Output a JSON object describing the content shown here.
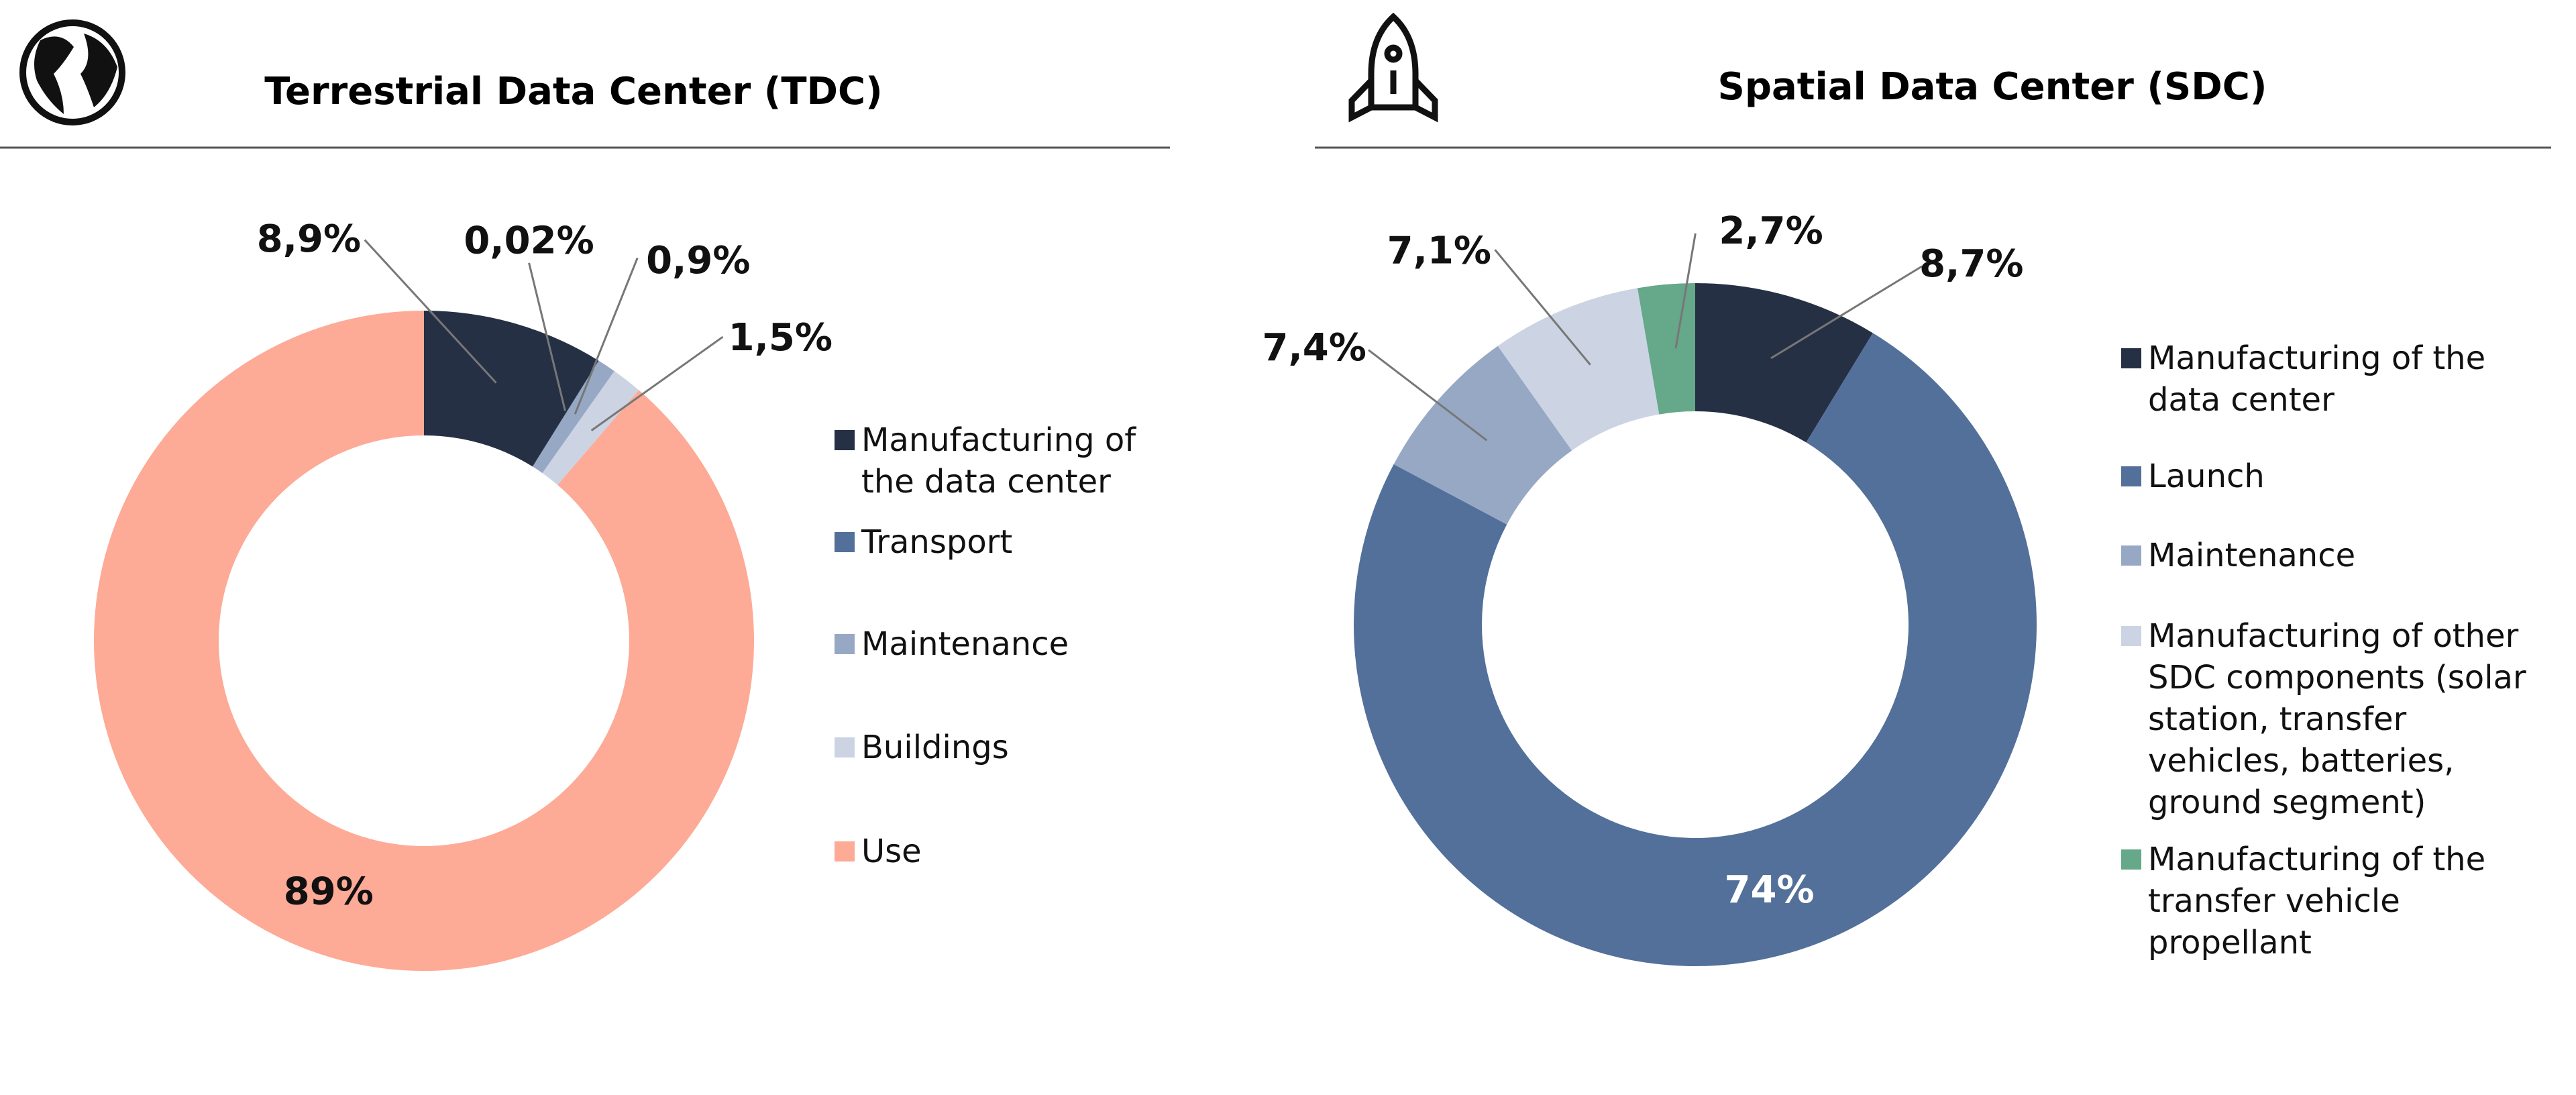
{
  "chart_data": [
    {
      "type": "pie",
      "title": "Terrestrial Data Center (TDC)",
      "categories": [
        "Manufacturing of the data center",
        "Transport",
        "Maintenance",
        "Buildings",
        "Use"
      ],
      "values": [
        8.9,
        0.02,
        0.9,
        1.5,
        89
      ],
      "value_labels": [
        "8,9%",
        "0,02%",
        "0,9%",
        "1,5%",
        "89%"
      ],
      "colors": [
        "#253044",
        "#52709a",
        "#97a8c5",
        "#ccd4e3",
        "#fdaa96"
      ]
    },
    {
      "type": "pie",
      "title": "Spatial Data Center (SDC)",
      "categories": [
        "Manufacturing of the data center",
        "Launch",
        "Maintenance",
        "Manufacturing of other SDC components (solar station, transfer vehicles, batteries, ground segment)",
        "Manufacturing of the transfer vehicle propellant"
      ],
      "values": [
        8.7,
        74,
        7.4,
        7.1,
        2.7
      ],
      "value_labels": [
        "8,7%",
        "74%",
        "7,4%",
        "7,1%",
        "2,7%"
      ],
      "colors": [
        "#253044",
        "#52709a",
        "#97a8c5",
        "#ccd4e3",
        "#65a88a"
      ]
    }
  ]
}
